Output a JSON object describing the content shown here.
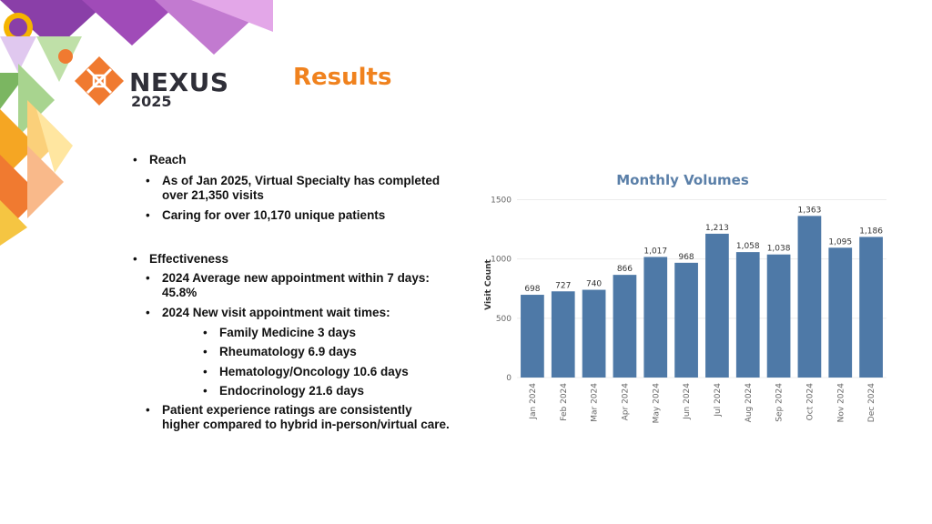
{
  "brand": {
    "name": "NEXUS",
    "year": "2025"
  },
  "slide_title": "Results",
  "bullets": {
    "reach": "Reach",
    "reach_1": "As of Jan 2025, Virtual Specialty has completed",
    "reach_1b": "over 21,350 visits",
    "reach_2": "Caring for over 10,170 unique patients",
    "effectiveness": "Effectiveness",
    "eff_1": "2024 Average new appointment within 7 days:",
    "eff_1b": "45.8%",
    "eff_2": "2024 New visit appointment wait times:",
    "wait_1": "Family Medicine 3 days",
    "wait_2": "Rheumatology 6.9 days",
    "wait_3": "Hematology/Oncology 10.6 days",
    "wait_4": "Endocrinology 21.6 days",
    "eff_3": "Patient experience ratings are consistently",
    "eff_3b": "higher compared to hybrid in-person/virtual care."
  },
  "colors": {
    "accent": "#f0821e",
    "bar": "#4e79a7",
    "chart_title": "#5a7fa8"
  },
  "chart_data": {
    "type": "bar",
    "title": "Monthly Volumes",
    "ylabel": "Visit Count",
    "xlabel": "",
    "categories": [
      "Jan 2024",
      "Feb 2024",
      "Mar 2024",
      "Apr 2024",
      "May 2024",
      "Jun 2024",
      "Jul 2024",
      "Aug 2024",
      "Sep 2024",
      "Oct 2024",
      "Nov 2024",
      "Dec 2024"
    ],
    "values": [
      698,
      727,
      740,
      866,
      1017,
      968,
      1213,
      1058,
      1038,
      1363,
      1095,
      1186
    ],
    "value_labels": [
      "698",
      "727",
      "740",
      "866",
      "1,017",
      "968",
      "1,213",
      "1,058",
      "1,038",
      "1,363",
      "1,095",
      "1,186"
    ],
    "yticks": [
      0,
      500,
      1000,
      1500
    ],
    "ylim": [
      0,
      1550
    ],
    "grid": true
  }
}
